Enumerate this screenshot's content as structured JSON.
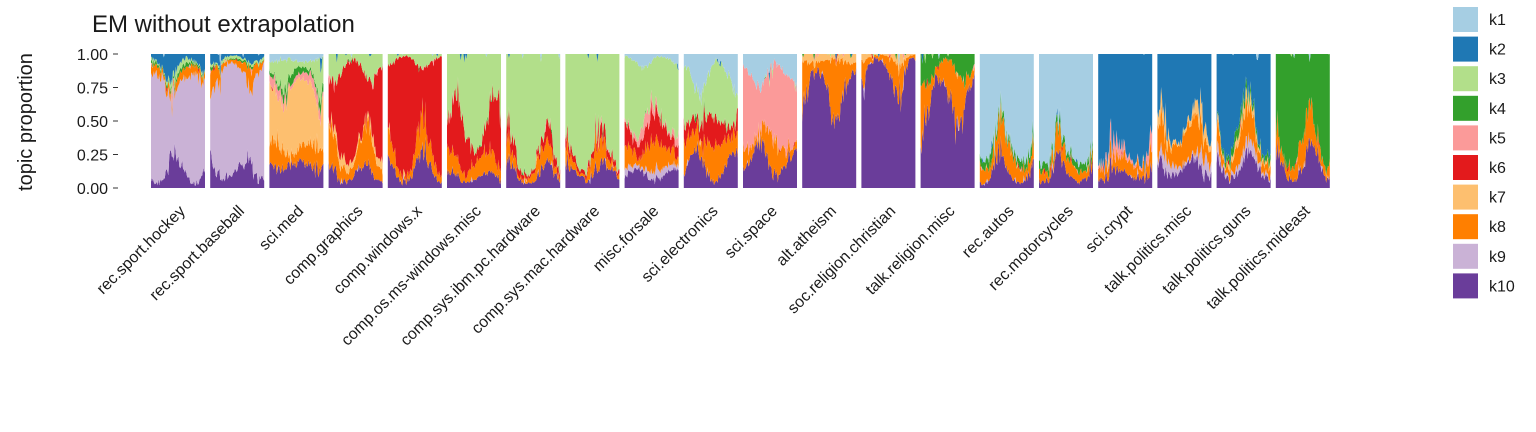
{
  "chart_data": {
    "type": "area",
    "title": "EM without extrapolation",
    "ylabel": "topic proportion",
    "xlabel": "",
    "ylim": [
      0,
      1
    ],
    "yticks": [
      "0.00",
      "0.25",
      "0.50",
      "0.75",
      "1.00"
    ],
    "ytick_values": [
      0,
      0.25,
      0.5,
      0.75,
      1
    ],
    "grid": false,
    "legend_position": "right",
    "topics": [
      "k1",
      "k2",
      "k3",
      "k4",
      "k5",
      "k6",
      "k7",
      "k8",
      "k9",
      "k10"
    ],
    "colors": [
      "#a6cee3",
      "#1f78b4",
      "#b2df8a",
      "#33a02c",
      "#fb9a99",
      "#e31a1c",
      "#fdbf6f",
      "#ff7f00",
      "#cab2d6",
      "#6a3d9a"
    ],
    "categories": [
      "rec.sport.hockey",
      "rec.sport.baseball",
      "sci.med",
      "comp.graphics",
      "comp.windows.x",
      "comp.os.ms-windows.misc",
      "comp.sys.ibm.pc.hardware",
      "comp.sys.mac.hardware",
      "misc.forsale",
      "sci.electronics",
      "sci.space",
      "alt.atheism",
      "soc.religion.christian",
      "talk.religion.misc",
      "rec.autos",
      "rec.motorcycles",
      "sci.crypt",
      "talk.politics.misc",
      "talk.politics.guns",
      "talk.politics.mideast"
    ],
    "approx_mean_proportions": [
      [
        0.0,
        0.08,
        0.03,
        0.02,
        0.0,
        0.0,
        0.0,
        0.06,
        0.7,
        0.11
      ],
      [
        0.0,
        0.03,
        0.02,
        0.01,
        0.0,
        0.0,
        0.0,
        0.06,
        0.75,
        0.13
      ],
      [
        0.05,
        0.0,
        0.1,
        0.05,
        0.05,
        0.0,
        0.45,
        0.12,
        0.0,
        0.18
      ],
      [
        0.0,
        0.0,
        0.1,
        0.0,
        0.0,
        0.6,
        0.05,
        0.15,
        0.0,
        0.1
      ],
      [
        0.0,
        0.0,
        0.05,
        0.0,
        0.0,
        0.7,
        0.0,
        0.12,
        0.0,
        0.13
      ],
      [
        0.0,
        0.0,
        0.55,
        0.0,
        0.0,
        0.25,
        0.0,
        0.12,
        0.0,
        0.08
      ],
      [
        0.0,
        0.0,
        0.8,
        0.0,
        0.0,
        0.05,
        0.0,
        0.07,
        0.0,
        0.08
      ],
      [
        0.0,
        0.0,
        0.75,
        0.0,
        0.0,
        0.05,
        0.0,
        0.08,
        0.0,
        0.12
      ],
      [
        0.05,
        0.0,
        0.45,
        0.0,
        0.05,
        0.15,
        0.0,
        0.15,
        0.05,
        0.1
      ],
      [
        0.15,
        0.0,
        0.35,
        0.0,
        0.0,
        0.15,
        0.0,
        0.2,
        0.0,
        0.15
      ],
      [
        0.15,
        0.0,
        0.0,
        0.0,
        0.5,
        0.0,
        0.0,
        0.15,
        0.0,
        0.2
      ],
      [
        0.0,
        0.0,
        0.0,
        0.0,
        0.0,
        0.0,
        0.05,
        0.2,
        0.0,
        0.75
      ],
      [
        0.0,
        0.0,
        0.0,
        0.0,
        0.0,
        0.0,
        0.02,
        0.08,
        0.0,
        0.9
      ],
      [
        0.0,
        0.0,
        0.0,
        0.1,
        0.0,
        0.0,
        0.0,
        0.2,
        0.0,
        0.7
      ],
      [
        0.7,
        0.0,
        0.0,
        0.05,
        0.0,
        0.0,
        0.0,
        0.15,
        0.0,
        0.1
      ],
      [
        0.75,
        0.0,
        0.0,
        0.05,
        0.0,
        0.0,
        0.0,
        0.1,
        0.0,
        0.1
      ],
      [
        0.0,
        0.75,
        0.0,
        0.0,
        0.05,
        0.0,
        0.0,
        0.1,
        0.0,
        0.1
      ],
      [
        0.0,
        0.55,
        0.0,
        0.0,
        0.0,
        0.0,
        0.05,
        0.2,
        0.05,
        0.15
      ],
      [
        0.0,
        0.55,
        0.0,
        0.05,
        0.0,
        0.0,
        0.05,
        0.15,
        0.05,
        0.15
      ],
      [
        0.0,
        0.0,
        0.0,
        0.7,
        0.0,
        0.0,
        0.0,
        0.15,
        0.0,
        0.15
      ]
    ]
  }
}
